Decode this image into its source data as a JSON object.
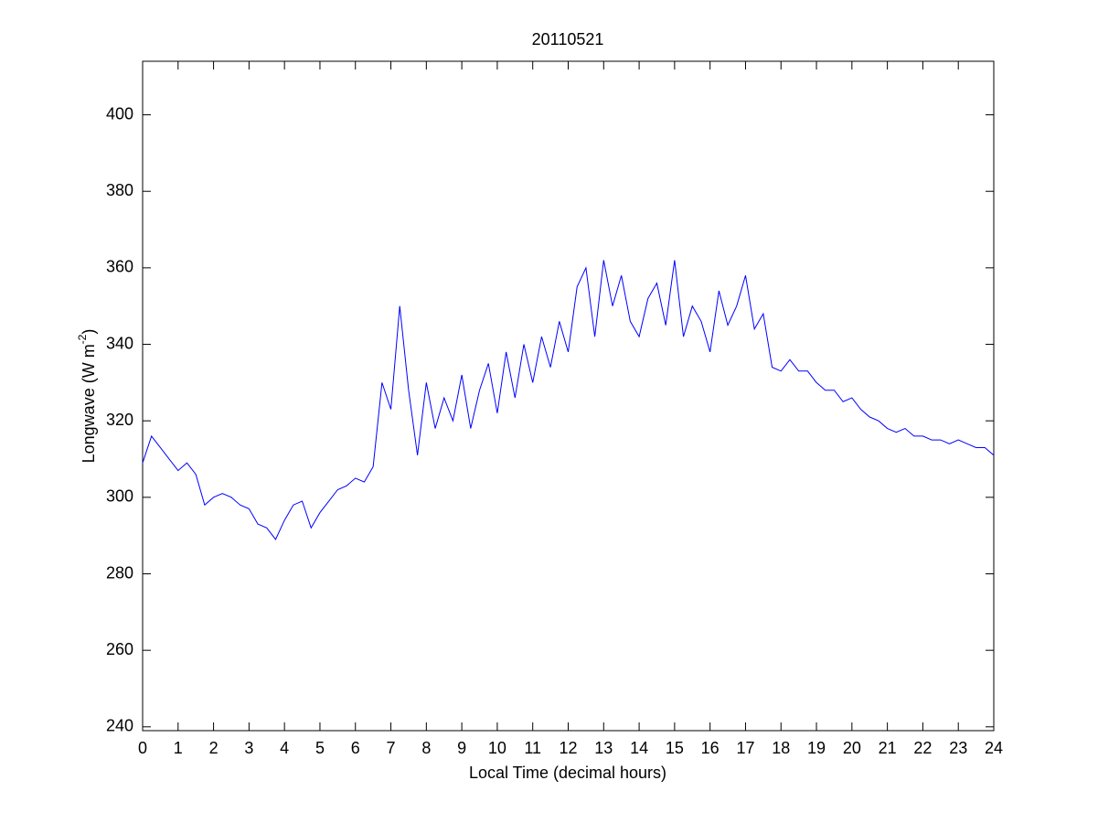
{
  "chart_data": {
    "type": "line",
    "title": "20110521",
    "x_label": "Local Time (decimal hours)",
    "y_label": {
      "text": "Longwave (W m",
      "superscript": "-2",
      "suffix": ")"
    },
    "x": [
      0,
      0.25,
      0.5,
      0.75,
      1,
      1.25,
      1.5,
      1.75,
      2,
      2.25,
      2.5,
      2.75,
      3,
      3.25,
      3.5,
      3.75,
      4,
      4.25,
      4.5,
      4.75,
      5,
      5.25,
      5.5,
      5.75,
      6,
      6.25,
      6.5,
      6.75,
      7,
      7.25,
      7.5,
      7.75,
      8,
      8.25,
      8.5,
      8.75,
      9,
      9.25,
      9.5,
      9.75,
      10,
      10.25,
      10.5,
      10.75,
      11,
      11.25,
      11.5,
      11.75,
      12,
      12.25,
      12.5,
      12.75,
      13,
      13.25,
      13.5,
      13.75,
      14,
      14.25,
      14.5,
      14.75,
      15,
      15.25,
      15.5,
      15.75,
      16,
      16.25,
      16.5,
      16.75,
      17,
      17.25,
      17.5,
      17.75,
      18,
      18.25,
      18.5,
      18.75,
      19,
      19.25,
      19.5,
      19.75,
      20,
      20.25,
      20.5,
      20.75,
      21,
      21.25,
      21.5,
      21.75,
      22,
      22.25,
      22.5,
      22.75,
      23,
      23.25,
      23.5,
      23.75,
      24
    ],
    "series": [
      {
        "name": "Longwave",
        "color": "#0000ff",
        "values": [
          309,
          316,
          313,
          310,
          307,
          309,
          306,
          298,
          300,
          301,
          300,
          298,
          297,
          293,
          292,
          289,
          294,
          298,
          299,
          292,
          296,
          299,
          302,
          303,
          305,
          304,
          308,
          330,
          323,
          350,
          328,
          311,
          330,
          318,
          326,
          320,
          332,
          318,
          328,
          335,
          322,
          338,
          326,
          340,
          330,
          342,
          334,
          346,
          338,
          355,
          360,
          342,
          362,
          350,
          358,
          346,
          342,
          352,
          356,
          345,
          362,
          342,
          350,
          346,
          338,
          354,
          345,
          350,
          358,
          344,
          348,
          334,
          333,
          336,
          333,
          333,
          330,
          328,
          328,
          325,
          326,
          323,
          321,
          320,
          318,
          317,
          318,
          316,
          316,
          315,
          315,
          314,
          315,
          314,
          313,
          313,
          311
        ]
      }
    ],
    "xlim": [
      0,
      24
    ],
    "xticks": [
      0,
      1,
      2,
      3,
      4,
      5,
      6,
      7,
      8,
      9,
      10,
      11,
      12,
      13,
      14,
      15,
      16,
      17,
      18,
      19,
      20,
      21,
      22,
      23,
      24
    ],
    "ylim": [
      239,
      414
    ],
    "yticks": [
      240,
      260,
      280,
      300,
      320,
      340,
      360,
      380,
      400
    ],
    "grid": false
  }
}
